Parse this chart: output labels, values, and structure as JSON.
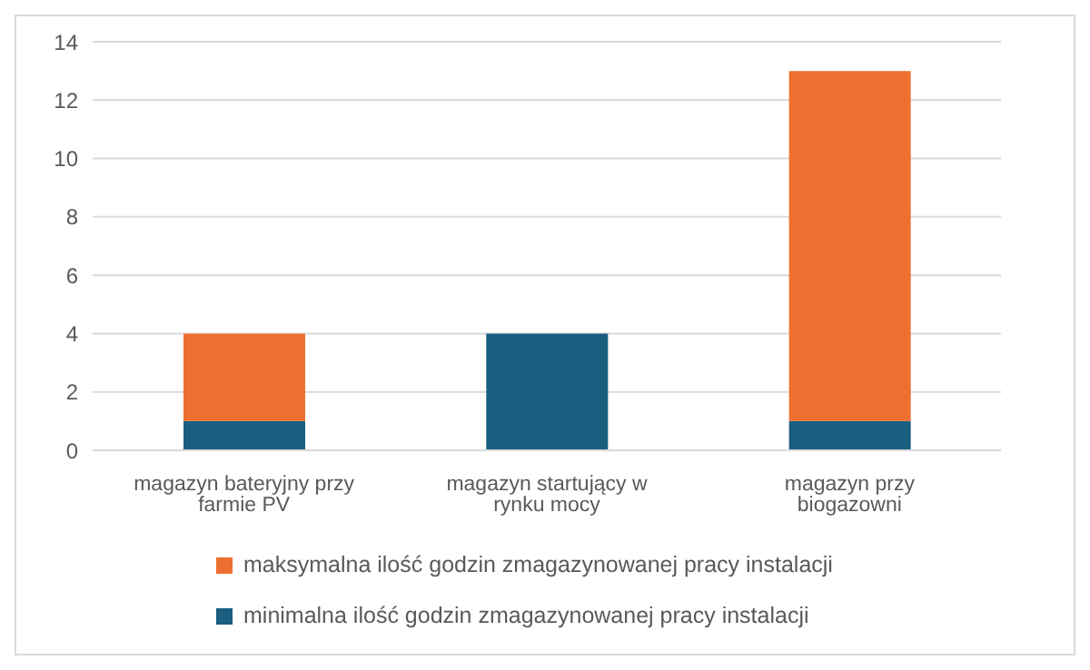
{
  "chart_data": {
    "type": "bar",
    "stacked": true,
    "categories": [
      "magazyn bateryjny przy farmie PV",
      "magazyn startujący w rynku mocy",
      "magazyn przy biogazowni"
    ],
    "series": [
      {
        "name": "minimalna ilość godzin zmagazynowanej pracy instalacji",
        "color": "#1a5e80",
        "values": [
          1,
          4,
          1
        ]
      },
      {
        "name": "maksymalna ilość godzin zmagazynowanej pracy instalacji",
        "color": "#ed7031",
        "values": [
          3,
          0,
          12
        ]
      }
    ],
    "ylim": [
      0,
      14
    ],
    "yticks": [
      0,
      2,
      4,
      6,
      8,
      10,
      12,
      14
    ],
    "grid": "y",
    "legend": "bottom"
  }
}
